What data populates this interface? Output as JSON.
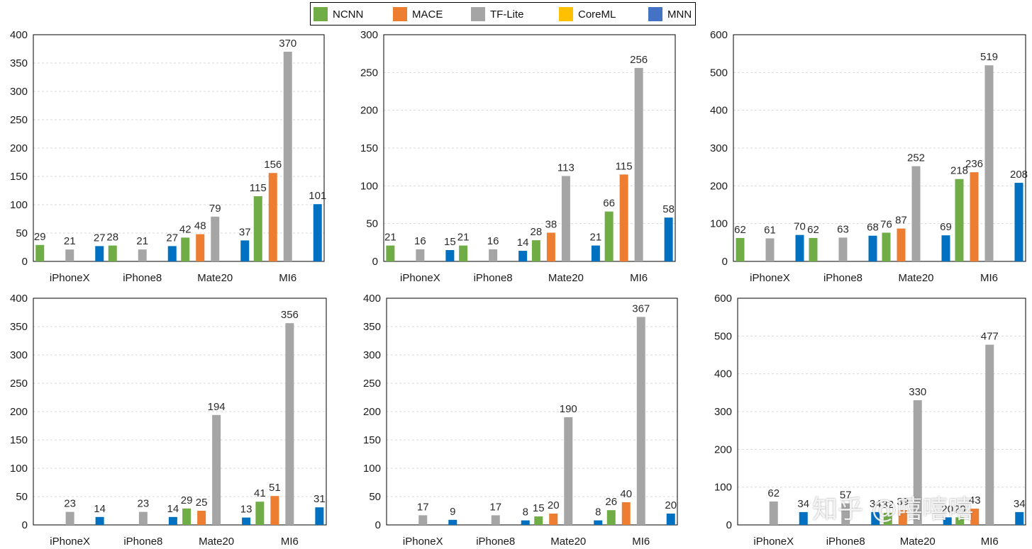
{
  "legend": [
    {
      "name": "NCNN",
      "color": "#70ad47"
    },
    {
      "name": "MACE",
      "color": "#ed7d31"
    },
    {
      "name": "TF-Lite",
      "color": "#a5a5a5"
    },
    {
      "name": "CoreML",
      "color": "#ffc000"
    },
    {
      "name": "MNN",
      "color": "#4472c4"
    }
  ],
  "watermark": "知乎 @嘻嘻嘻",
  "chart_data": [
    {
      "type": "bar",
      "categories": [
        "iPhoneX",
        "iPhone8",
        "Mate20",
        "MI6"
      ],
      "ylim": [
        0,
        400
      ],
      "yticks": [
        0,
        50,
        100,
        150,
        200,
        250,
        300,
        350,
        400
      ],
      "series": [
        {
          "name": "NCNN",
          "color": "#70ad47",
          "values": [
            29,
            28,
            42,
            115
          ]
        },
        {
          "name": "MACE",
          "color": "#ed7d31",
          "values": [
            null,
            null,
            48,
            156
          ]
        },
        {
          "name": "TF-Lite",
          "color": "#a5a5a5",
          "values": [
            21,
            21,
            79,
            370
          ]
        },
        {
          "name": "MNN",
          "color": "#0070c0",
          "values": [
            27,
            27,
            37,
            101
          ]
        }
      ]
    },
    {
      "type": "bar",
      "categories": [
        "iPhoneX",
        "iPhone8",
        "Mate20",
        "MI6"
      ],
      "ylim": [
        0,
        300
      ],
      "yticks": [
        0,
        50,
        100,
        150,
        200,
        250,
        300
      ],
      "series": [
        {
          "name": "NCNN",
          "color": "#70ad47",
          "values": [
            21,
            21,
            28,
            66
          ]
        },
        {
          "name": "MACE",
          "color": "#ed7d31",
          "values": [
            null,
            null,
            38,
            115
          ]
        },
        {
          "name": "TF-Lite",
          "color": "#a5a5a5",
          "values": [
            16,
            16,
            113,
            256
          ]
        },
        {
          "name": "MNN",
          "color": "#0070c0",
          "values": [
            15,
            14,
            21,
            58
          ]
        }
      ]
    },
    {
      "type": "bar",
      "categories": [
        "iPhoneX",
        "iPhone8",
        "Mate20",
        "MI6"
      ],
      "ylim": [
        0,
        600
      ],
      "yticks": [
        0,
        100,
        200,
        300,
        400,
        500,
        600
      ],
      "series": [
        {
          "name": "NCNN",
          "color": "#70ad47",
          "values": [
            62,
            62,
            76,
            218
          ]
        },
        {
          "name": "MACE",
          "color": "#ed7d31",
          "values": [
            null,
            null,
            87,
            236
          ]
        },
        {
          "name": "TF-Lite",
          "color": "#a5a5a5",
          "values": [
            61,
            63,
            252,
            519
          ]
        },
        {
          "name": "MNN",
          "color": "#0070c0",
          "values": [
            70,
            68,
            69,
            208
          ]
        }
      ]
    },
    {
      "type": "bar",
      "categories": [
        "iPhoneX",
        "iPhone8",
        "Mate20",
        "MI6"
      ],
      "ylim": [
        0,
        400
      ],
      "yticks": [
        0,
        50,
        100,
        150,
        200,
        250,
        300,
        350,
        400
      ],
      "series": [
        {
          "name": "NCNN",
          "color": "#70ad47",
          "values": [
            null,
            null,
            29,
            41
          ]
        },
        {
          "name": "MACE",
          "color": "#ed7d31",
          "values": [
            null,
            null,
            25,
            51
          ]
        },
        {
          "name": "TF-Lite",
          "color": "#a5a5a5",
          "values": [
            23,
            23,
            194,
            356
          ]
        },
        {
          "name": "MNN",
          "color": "#0070c0",
          "values": [
            14,
            14,
            13,
            31
          ]
        }
      ]
    },
    {
      "type": "bar",
      "categories": [
        "iPhoneX",
        "iPhone8",
        "Mate20",
        "MI6"
      ],
      "ylim": [
        0,
        400
      ],
      "yticks": [
        0,
        50,
        100,
        150,
        200,
        250,
        300,
        350,
        400
      ],
      "series": [
        {
          "name": "NCNN",
          "color": "#70ad47",
          "values": [
            null,
            null,
            15,
            26
          ]
        },
        {
          "name": "MACE",
          "color": "#ed7d31",
          "values": [
            null,
            null,
            20,
            40
          ]
        },
        {
          "name": "TF-Lite",
          "color": "#a5a5a5",
          "values": [
            17,
            17,
            190,
            367
          ]
        },
        {
          "name": "MNN",
          "color": "#0070c0",
          "values": [
            9,
            8,
            8,
            20
          ]
        }
      ]
    },
    {
      "type": "bar",
      "categories": [
        "iPhoneX",
        "iPhone8",
        "Mate20",
        "MI6"
      ],
      "ylim": [
        0,
        600
      ],
      "yticks": [
        0,
        100,
        200,
        300,
        400,
        500,
        600
      ],
      "series": [
        {
          "name": "NCNN",
          "color": "#70ad47",
          "values": [
            null,
            null,
            32,
            20
          ]
        },
        {
          "name": "MACE",
          "color": "#ed7d31",
          "values": [
            null,
            null,
            39,
            43
          ]
        },
        {
          "name": "TF-Lite",
          "color": "#a5a5a5",
          "values": [
            62,
            57,
            330,
            477
          ]
        },
        {
          "name": "MNN",
          "color": "#0070c0",
          "values": [
            34,
            34,
            20,
            34
          ]
        }
      ]
    }
  ]
}
